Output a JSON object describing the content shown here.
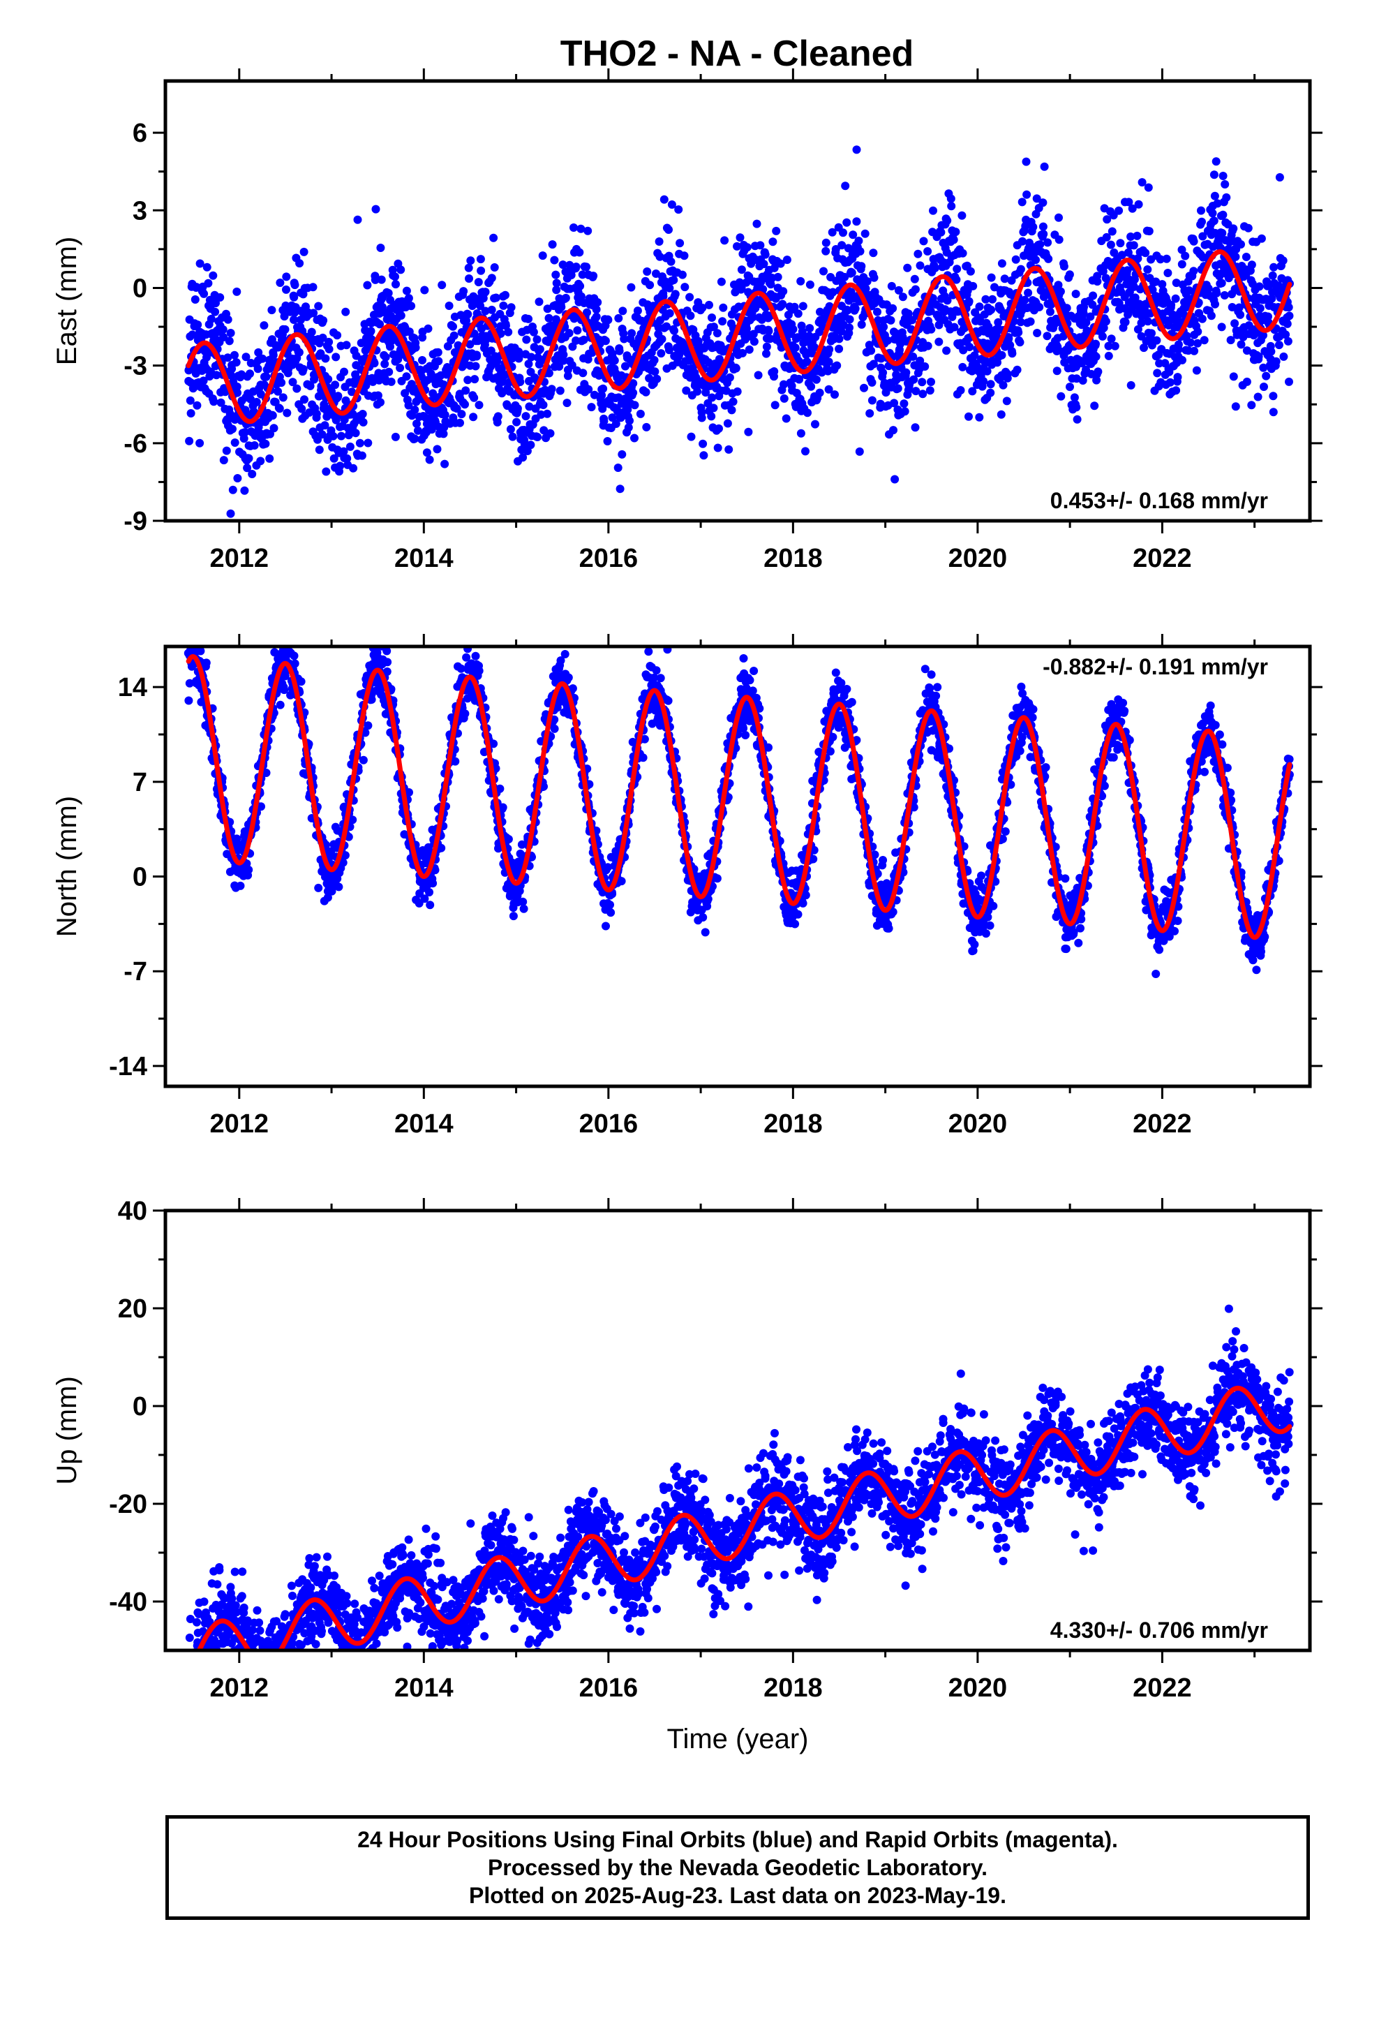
{
  "figure": {
    "title": "THO2  - NA - Cleaned",
    "colors": {
      "data": "#0000ff",
      "fit": "#ff0000",
      "axis": "#000000"
    }
  },
  "chart_data": [
    {
      "type": "scatter",
      "name": "East",
      "ylabel": "East (mm)",
      "xlabel": "",
      "xlim": [
        2011.2,
        2023.6
      ],
      "ylim": [
        -9,
        8
      ],
      "x_ticks": [
        2012,
        2014,
        2016,
        2018,
        2020,
        2022
      ],
      "x_tick_labels": [
        "2012",
        "2014",
        "2016",
        "2018",
        "2020",
        "2022"
      ],
      "y_ticks": [
        -9,
        -6,
        -3,
        0,
        3,
        6
      ],
      "y_tick_labels": [
        "-9",
        "-6",
        "-3",
        "0",
        "3",
        "6"
      ],
      "rate_label": "0.453+/- 0.168 mm/yr",
      "rate_position": "bottom-right",
      "data_span": [
        2011.45,
        2023.38
      ],
      "fit": {
        "offset": -2.0,
        "slope": 0.453,
        "slope_display": 0.32,
        "annual_amplitude": 1.6,
        "peak_phase": 0.62
      },
      "scatter": {
        "std": 1.4,
        "points": 3400
      },
      "grid": false
    },
    {
      "type": "scatter",
      "name": "North",
      "ylabel": "North (mm)",
      "xlabel": "",
      "xlim": [
        2011.2,
        2023.6
      ],
      "ylim": [
        -15.5,
        17
      ],
      "x_ticks": [
        2012,
        2014,
        2016,
        2018,
        2020,
        2022
      ],
      "x_tick_labels": [
        "2012",
        "2014",
        "2016",
        "2018",
        "2020",
        "2022"
      ],
      "y_ticks": [
        -14,
        -7,
        0,
        7,
        14
      ],
      "y_tick_labels": [
        "-14",
        "-7",
        "0",
        "7",
        "14"
      ],
      "rate_label": "-0.882+/- 0.191 mm/yr",
      "rate_position": "top-right",
      "data_span": [
        2011.45,
        2023.38
      ],
      "fit": {
        "offset": 6.0,
        "slope": -0.882,
        "slope_display": -0.5,
        "annual_amplitude": 7.5,
        "peak_phase": 0.5
      },
      "scatter": {
        "std": 1.1,
        "points": 3400
      },
      "grid": false
    },
    {
      "type": "scatter",
      "name": "Up",
      "ylabel": "Up (mm)",
      "xlabel": "Time (year)",
      "xlim": [
        2011.2,
        2023.6
      ],
      "ylim": [
        -50,
        40
      ],
      "x_ticks": [
        2012,
        2014,
        2016,
        2018,
        2020,
        2022
      ],
      "x_tick_labels": [
        "2012",
        "2014",
        "2016",
        "2018",
        "2020",
        "2022"
      ],
      "y_ticks": [
        -40,
        -20,
        0,
        20,
        40
      ],
      "y_tick_labels": [
        "-40",
        "-20",
        "0",
        "20",
        "40"
      ],
      "rate_label": "4.330+/- 0.706 mm/yr",
      "rate_position": "bottom-right",
      "data_span": [
        2011.45,
        2023.38
      ],
      "fit": {
        "offset": -27.0,
        "slope": 4.33,
        "annual_amplitude": 5.5,
        "peak_phase": 0.8
      },
      "scatter": {
        "std": 4.5,
        "points": 3400
      },
      "grid": false
    }
  ],
  "footer": {
    "line1": "24 Hour Positions Using Final Orbits (blue) and Rapid Orbits (magenta).",
    "line2": "Processed by the Nevada Geodetic Laboratory.",
    "line3": "Plotted on 2025-Aug-23. Last data on 2023-May-19."
  }
}
